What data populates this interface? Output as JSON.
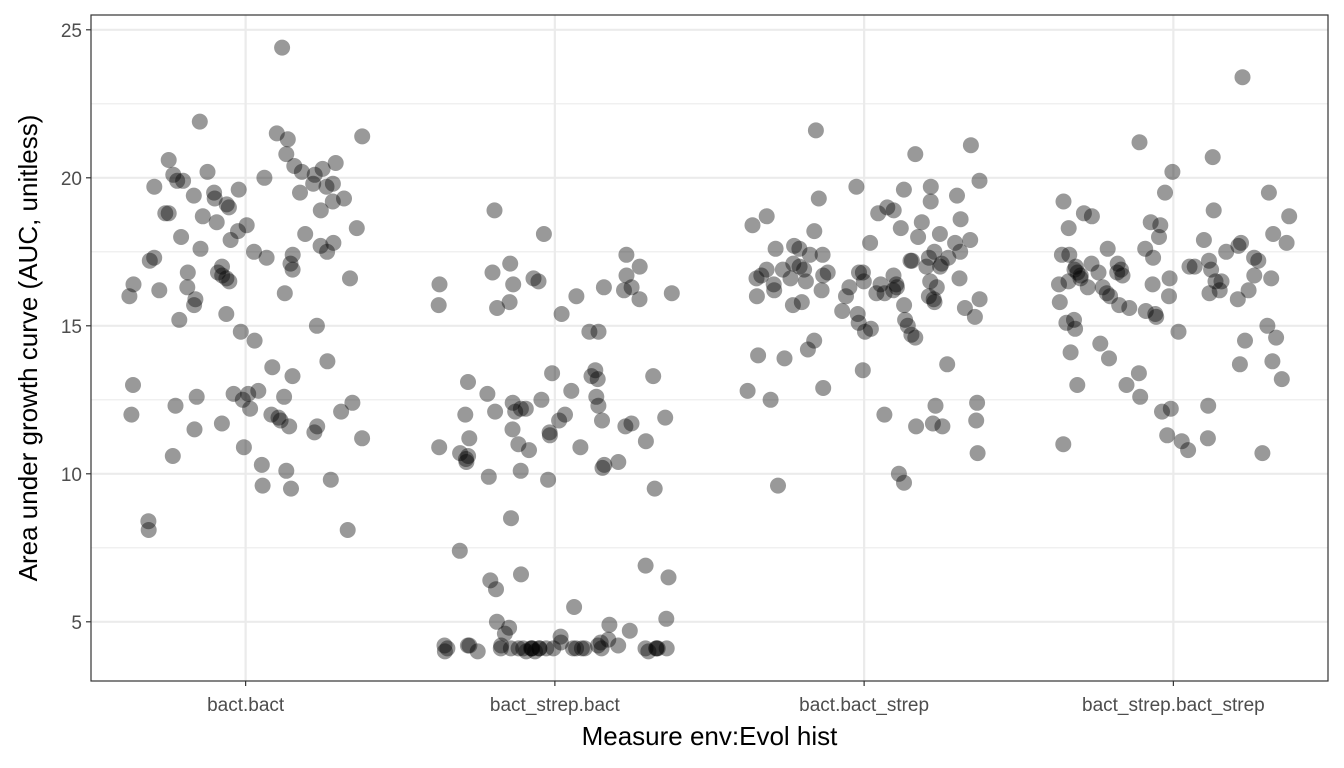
{
  "chart_data": {
    "type": "scatter",
    "jitter": true,
    "title": "",
    "xlabel": "Measure env:Evol hist",
    "ylabel": "Area under growth curve (AUC, unitless)",
    "categories": [
      "bact.bact",
      "bact_strep.bact",
      "bact.bact_strep",
      "bact_strep.bact_strep"
    ],
    "ylim": [
      3,
      25.5
    ],
    "yticks": [
      5,
      10,
      15,
      20,
      25
    ],
    "grid": true,
    "legend": "none",
    "point_color": "#000000",
    "point_alpha": 0.4,
    "series": [
      {
        "values": [
          24.4,
          21.9,
          21.5,
          21.4,
          21.3,
          20.8,
          20.6,
          20.5,
          20.4,
          20.3,
          20.2,
          20.2,
          20.1,
          20.1,
          20.0,
          19.9,
          19.9,
          19.8,
          19.8,
          19.7,
          19.7,
          19.6,
          19.5,
          19.5,
          19.4,
          19.3,
          19.3,
          19.2,
          19.1,
          19.0,
          18.9,
          18.8,
          18.8,
          18.7,
          18.5,
          18.4,
          18.3,
          18.2,
          18.1,
          18.0,
          17.9,
          17.8,
          17.7,
          17.6,
          17.5,
          17.5,
          17.4,
          17.3,
          17.3,
          17.2,
          17.1,
          17.0,
          16.9,
          16.8,
          16.8,
          16.7,
          16.6,
          16.6,
          16.5,
          16.4,
          16.3,
          16.2,
          16.1,
          16.0,
          15.9,
          15.7,
          15.4,
          15.2,
          15.0,
          14.8,
          14.5,
          13.8,
          13.6,
          13.3,
          13.0,
          12.8,
          12.7,
          12.7,
          12.6,
          12.6,
          12.5,
          12.4,
          12.3,
          12.2,
          12.1,
          12.0,
          12.0,
          11.9,
          11.8,
          11.7,
          11.6,
          11.6,
          11.5,
          11.4,
          11.2,
          10.9,
          10.6,
          10.3,
          10.1,
          9.8,
          9.6,
          9.5,
          8.4,
          8.1,
          8.1
        ]
      },
      {
        "values": [
          18.9,
          18.1,
          17.4,
          17.1,
          17.0,
          16.8,
          16.7,
          16.6,
          16.5,
          16.4,
          16.4,
          16.3,
          16.3,
          16.2,
          16.1,
          16.0,
          15.9,
          15.8,
          15.7,
          15.6,
          15.4,
          14.8,
          14.8,
          13.5,
          13.4,
          13.3,
          13.3,
          13.2,
          13.1,
          12.8,
          12.7,
          12.6,
          12.5,
          12.4,
          12.3,
          12.2,
          12.2,
          12.1,
          12.1,
          12.0,
          12.0,
          11.9,
          11.8,
          11.8,
          11.7,
          11.6,
          11.5,
          11.4,
          11.3,
          11.2,
          11.1,
          11.0,
          10.9,
          10.9,
          10.8,
          10.7,
          10.6,
          10.5,
          10.4,
          10.4,
          10.3,
          10.2,
          10.1,
          9.9,
          9.8,
          9.5,
          8.5,
          7.4,
          6.9,
          6.6,
          6.5,
          6.4,
          6.1,
          5.5,
          5.1,
          5.0,
          4.9,
          4.8,
          4.7,
          4.6,
          4.5,
          4.4,
          4.3,
          4.3,
          4.2,
          4.2,
          4.2,
          4.2,
          4.2,
          4.2,
          4.1,
          4.1,
          4.1,
          4.1,
          4.1,
          4.1,
          4.1,
          4.1,
          4.1,
          4.1,
          4.1,
          4.1,
          4.1,
          4.1,
          4.1,
          4.1,
          4.1,
          4.1,
          4.1,
          4.1,
          4.1,
          4.1,
          4.0,
          4.0,
          4.0,
          4.0,
          4.0
        ]
      },
      {
        "values": [
          21.6,
          21.1,
          20.8,
          19.9,
          19.7,
          19.7,
          19.6,
          19.4,
          19.3,
          19.2,
          19.0,
          18.9,
          18.8,
          18.7,
          18.6,
          18.5,
          18.4,
          18.3,
          18.2,
          18.1,
          18.0,
          17.9,
          17.8,
          17.8,
          17.7,
          17.6,
          17.6,
          17.5,
          17.5,
          17.4,
          17.4,
          17.3,
          17.3,
          17.2,
          17.2,
          17.1,
          17.1,
          17.0,
          17.0,
          17.0,
          16.9,
          16.9,
          16.9,
          16.8,
          16.8,
          16.8,
          16.7,
          16.7,
          16.7,
          16.6,
          16.6,
          16.6,
          16.5,
          16.5,
          16.5,
          16.4,
          16.4,
          16.4,
          16.3,
          16.3,
          16.3,
          16.2,
          16.2,
          16.2,
          16.1,
          16.1,
          16.0,
          16.0,
          16.0,
          15.9,
          15.9,
          15.8,
          15.8,
          15.7,
          15.7,
          15.6,
          15.5,
          15.4,
          15.3,
          15.2,
          15.1,
          15.0,
          14.9,
          14.8,
          14.7,
          14.6,
          14.5,
          14.2,
          14.0,
          13.9,
          13.7,
          13.5,
          12.9,
          12.8,
          12.5,
          12.4,
          12.3,
          12.0,
          11.8,
          11.7,
          11.6,
          11.6,
          10.7,
          10.0,
          9.7,
          9.6
        ]
      },
      {
        "values": [
          23.4,
          21.2,
          20.7,
          20.2,
          19.5,
          19.5,
          19.2,
          18.9,
          18.8,
          18.7,
          18.7,
          18.5,
          18.4,
          18.3,
          18.1,
          18.0,
          17.9,
          17.8,
          17.8,
          17.7,
          17.6,
          17.6,
          17.5,
          17.4,
          17.4,
          17.3,
          17.3,
          17.2,
          17.2,
          17.1,
          17.1,
          17.0,
          17.0,
          17.0,
          16.9,
          16.9,
          16.9,
          16.8,
          16.8,
          16.8,
          16.7,
          16.7,
          16.7,
          16.6,
          16.6,
          16.6,
          16.5,
          16.5,
          16.5,
          16.4,
          16.4,
          16.3,
          16.3,
          16.2,
          16.2,
          16.1,
          16.1,
          16.0,
          16.0,
          15.9,
          15.8,
          15.7,
          15.6,
          15.5,
          15.4,
          15.3,
          15.2,
          15.1,
          15.0,
          14.9,
          14.8,
          14.6,
          14.5,
          14.4,
          14.1,
          13.9,
          13.8,
          13.7,
          13.4,
          13.2,
          13.0,
          13.0,
          12.6,
          12.3,
          12.2,
          12.1,
          11.3,
          11.2,
          11.1,
          11.0,
          10.8,
          10.7
        ]
      }
    ]
  }
}
